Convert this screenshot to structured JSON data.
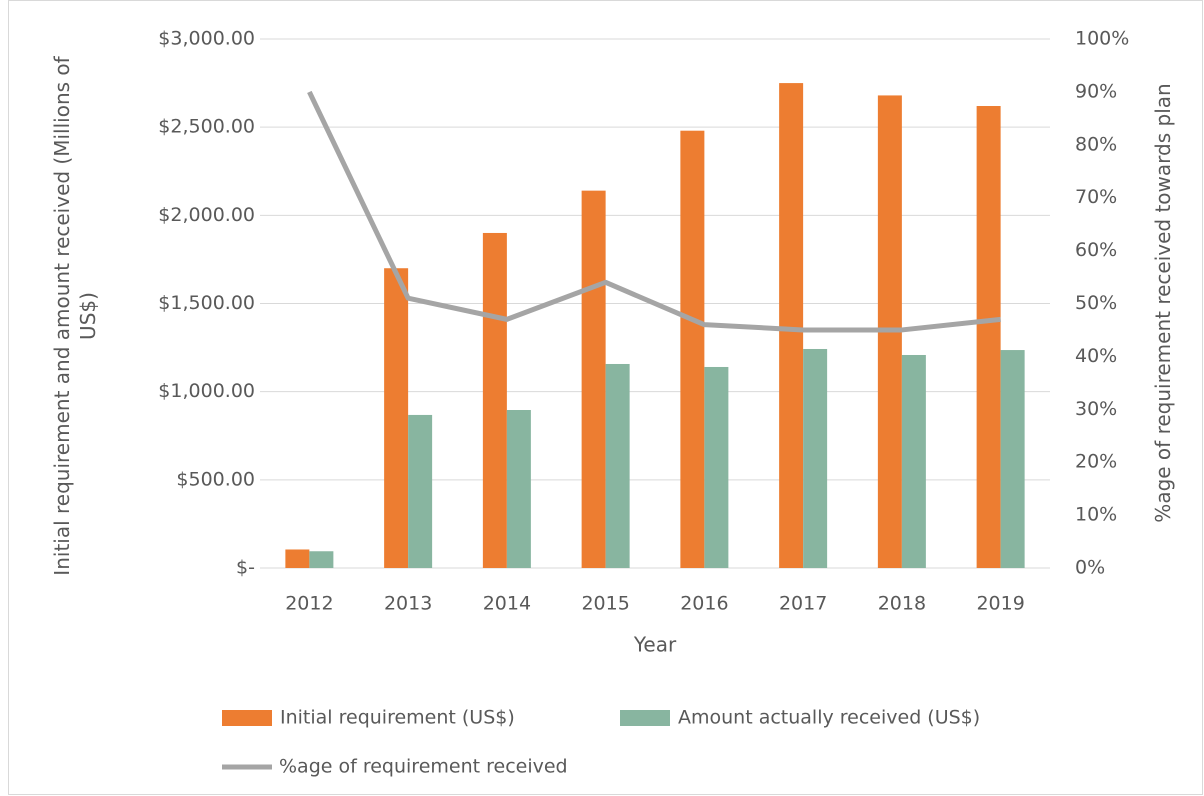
{
  "chart_data": {
    "type": "bar_line",
    "x_label": "Year",
    "y_label": "Initial requirement and amount received (Millions of US$)",
    "y2_label": "%age of requirement received towards plan",
    "categories": [
      "2012",
      "2013",
      "2014",
      "2015",
      "2016",
      "2017",
      "2018",
      "2019"
    ],
    "series": [
      {
        "name": "Initial requirement (US$)",
        "type": "bar",
        "color": "#ed7d31",
        "values": [
          105,
          1700,
          1900,
          2140,
          2480,
          2750,
          2680,
          2620
        ]
      },
      {
        "name": "Amount actually received (US$)",
        "type": "bar",
        "color": "#88b5a0",
        "values": [
          95,
          868,
          896,
          1157,
          1140,
          1242,
          1208,
          1236
        ]
      },
      {
        "name": "%age of requirement received",
        "type": "line",
        "axis": "y2",
        "color": "#a5a5a5",
        "values": [
          90,
          51,
          47,
          54,
          46,
          45,
          45,
          47
        ]
      }
    ],
    "ylim": [
      0,
      3000
    ],
    "yticks": [
      {
        "value": 0,
        "label": "$-"
      },
      {
        "value": 500,
        "label": "$500.00"
      },
      {
        "value": 1000,
        "label": "$1,000.00"
      },
      {
        "value": 1500,
        "label": "$1,500.00"
      },
      {
        "value": 2000,
        "label": "$2,000.00"
      },
      {
        "value": 2500,
        "label": "$2,500.00"
      },
      {
        "value": 3000,
        "label": "$3,000.00"
      }
    ],
    "y2lim": [
      0,
      100
    ],
    "y2ticks": [
      {
        "value": 0,
        "label": "0%"
      },
      {
        "value": 10,
        "label": "10%"
      },
      {
        "value": 20,
        "label": "20%"
      },
      {
        "value": 30,
        "label": "30%"
      },
      {
        "value": 40,
        "label": "40%"
      },
      {
        "value": 50,
        "label": "50%"
      },
      {
        "value": 60,
        "label": "60%"
      },
      {
        "value": 70,
        "label": "70%"
      },
      {
        "value": 80,
        "label": "80%"
      },
      {
        "value": 90,
        "label": "90%"
      },
      {
        "value": 100,
        "label": "100%"
      }
    ],
    "grid": true,
    "legend": "bottom"
  }
}
